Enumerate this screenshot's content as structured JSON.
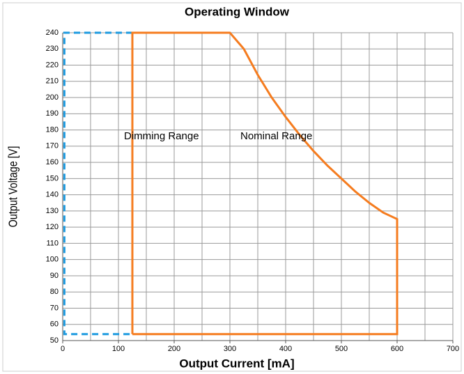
{
  "chart_data": {
    "type": "line",
    "title": "Operating Window",
    "x_label": "Output Current [mA]",
    "y_label": "Output Voltage [V]",
    "xlim": [
      0,
      700
    ],
    "ylim": [
      50,
      240
    ],
    "xticks": [
      0,
      100,
      200,
      300,
      400,
      500,
      600,
      700
    ],
    "yticks": [
      50,
      60,
      70,
      80,
      90,
      100,
      110,
      120,
      130,
      140,
      150,
      160,
      170,
      180,
      190,
      200,
      210,
      220,
      230,
      240
    ],
    "x_grid_lines": [
      0,
      50,
      100,
      150,
      200,
      250,
      300,
      350,
      400,
      450,
      500,
      550,
      600,
      650,
      700
    ],
    "grid": true,
    "series": [
      {
        "name": "Dimming Range",
        "color": "#1e9be0",
        "dashed": true,
        "x": [
          125,
          3,
          3,
          125
        ],
        "values": [
          240,
          240,
          54,
          54
        ]
      },
      {
        "name": "Nominal Range",
        "color": "#f57c1f",
        "dashed": false,
        "x": [
          125,
          125,
          300,
          325,
          350,
          375,
          400,
          425,
          450,
          475,
          500,
          525,
          550,
          575,
          600,
          600,
          125
        ],
        "values": [
          54,
          240,
          240,
          230,
          214,
          200,
          188,
          177,
          167,
          158,
          150,
          142,
          135,
          129,
          125,
          54,
          54
        ]
      }
    ]
  }
}
